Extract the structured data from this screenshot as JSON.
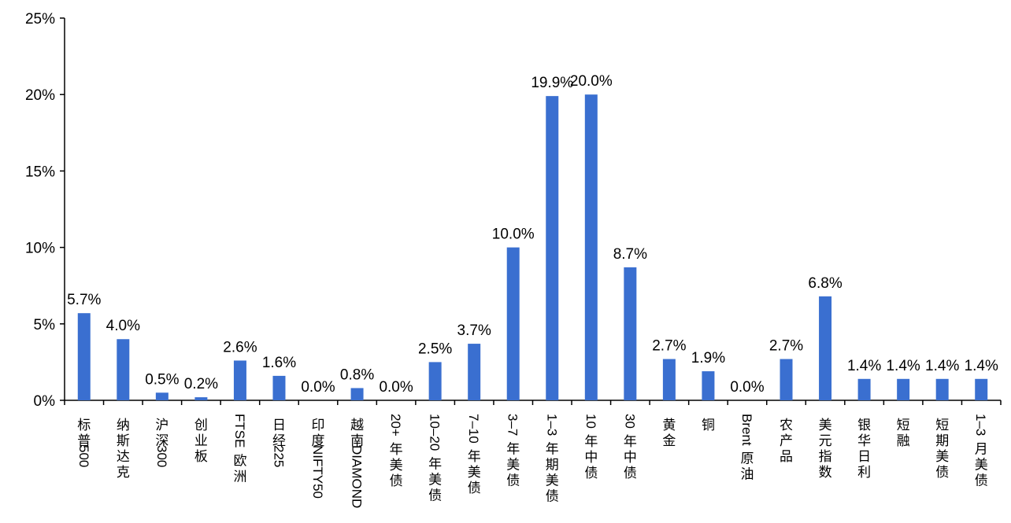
{
  "chart_data": {
    "type": "bar",
    "title": "",
    "xlabel": "",
    "ylabel": "",
    "ylim": [
      0,
      25
    ],
    "yticks": [
      0,
      5,
      10,
      15,
      20,
      25
    ],
    "ytick_labels": [
      "0%",
      "5%",
      "10%",
      "15%",
      "20%",
      "25%"
    ],
    "grid": false,
    "legend": "none",
    "bar_color": "#3A6FD0",
    "categories": [
      "标普500",
      "纳斯达克",
      "沪深300",
      "创业板",
      "FTSE欧洲",
      "日经225",
      "印度NIFTY50",
      "越南DIAMOND",
      "20+年美债",
      "10–20年美债",
      "7–10年美债",
      "3–7年美债",
      "1–3年期美债",
      "10年中债",
      "30年中债",
      "黄金",
      "铜",
      "Brent原油",
      "农产品",
      "美元指数",
      "银华日利",
      "短融",
      "短期美债",
      "1–3月美债"
    ],
    "values": [
      5.7,
      4.0,
      0.5,
      0.2,
      2.6,
      1.6,
      0.0,
      0.8,
      0.0,
      2.5,
      3.7,
      10.0,
      19.9,
      20.0,
      8.7,
      2.7,
      1.9,
      0.0,
      2.7,
      6.8,
      1.4,
      1.4,
      1.4,
      1.4
    ],
    "data_labels": [
      "5.7%",
      "4.0%",
      "0.5%",
      "0.2%",
      "2.6%",
      "1.6%",
      "0.0%",
      "0.8%",
      "0.0%",
      "2.5%",
      "3.7%",
      "10.0%",
      "19.9%",
      "20.0%",
      "8.7%",
      "2.7%",
      "1.9%",
      "0.0%",
      "2.7%",
      "6.8%",
      "1.4%",
      "1.4%",
      "1.4%",
      "1.4%"
    ]
  }
}
